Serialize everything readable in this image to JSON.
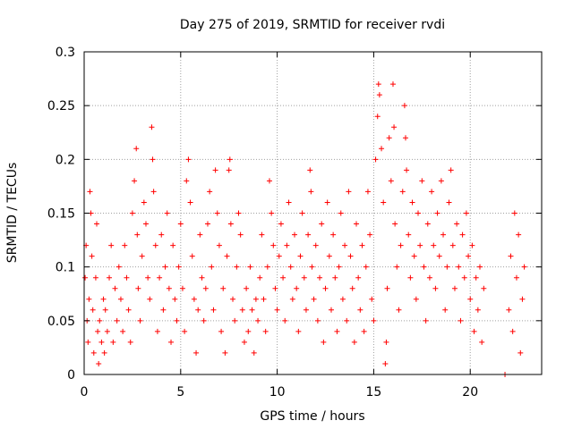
{
  "chart_data": {
    "type": "scatter",
    "title": "Day 275 of 2019, SRMTID for receiver rvdi",
    "xlabel": "GPS time / hours",
    "ylabel": "SRMTID / TECUs",
    "xlim": [
      0,
      23.7
    ],
    "ylim": [
      0,
      0.3
    ],
    "x_ticks": [
      "0",
      "5",
      "10",
      "15",
      "20"
    ],
    "x_tick_values": [
      0,
      5,
      10,
      15,
      20
    ],
    "y_ticks": [
      "0",
      "0.05",
      "0.1",
      "0.15",
      "0.2",
      "0.25",
      "0.3"
    ],
    "y_tick_values": [
      0,
      0.05,
      0.1,
      0.15,
      0.2,
      0.25,
      0.3
    ],
    "grid": true,
    "marker": "+",
    "color": "#ff0000",
    "series": [
      {
        "points": [
          [
            0.05,
            0.09
          ],
          [
            0.1,
            0.12
          ],
          [
            0.15,
            0.05
          ],
          [
            0.2,
            0.03
          ],
          [
            0.25,
            0.07
          ],
          [
            0.3,
            0.17
          ],
          [
            0.35,
            0.15
          ],
          [
            0.4,
            0.11
          ],
          [
            0.45,
            0.06
          ],
          [
            0.5,
            0.02
          ],
          [
            0.6,
            0.09
          ],
          [
            0.65,
            0.14
          ],
          [
            0.7,
            0.04
          ],
          [
            0.75,
            0.01
          ],
          [
            0.8,
            0.05
          ],
          [
            0.9,
            0.03
          ],
          [
            1.0,
            0.07
          ],
          [
            1.05,
            0.02
          ],
          [
            1.1,
            0.06
          ],
          [
            1.2,
            0.04
          ],
          [
            1.3,
            0.09
          ],
          [
            1.4,
            0.12
          ],
          [
            1.5,
            0.03
          ],
          [
            1.6,
            0.08
          ],
          [
            1.7,
            0.05
          ],
          [
            1.8,
            0.1
          ],
          [
            1.9,
            0.07
          ],
          [
            2.0,
            0.04
          ],
          [
            2.1,
            0.12
          ],
          [
            2.2,
            0.09
          ],
          [
            2.3,
            0.06
          ],
          [
            2.4,
            0.03
          ],
          [
            2.5,
            0.15
          ],
          [
            2.6,
            0.18
          ],
          [
            2.7,
            0.21
          ],
          [
            2.75,
            0.13
          ],
          [
            2.8,
            0.08
          ],
          [
            2.9,
            0.05
          ],
          [
            3.0,
            0.11
          ],
          [
            3.1,
            0.16
          ],
          [
            3.2,
            0.14
          ],
          [
            3.3,
            0.09
          ],
          [
            3.4,
            0.07
          ],
          [
            3.5,
            0.23
          ],
          [
            3.55,
            0.2
          ],
          [
            3.6,
            0.17
          ],
          [
            3.7,
            0.12
          ],
          [
            3.8,
            0.04
          ],
          [
            3.9,
            0.09
          ],
          [
            4.0,
            0.13
          ],
          [
            4.1,
            0.06
          ],
          [
            4.2,
            0.1
          ],
          [
            4.3,
            0.15
          ],
          [
            4.4,
            0.08
          ],
          [
            4.5,
            0.03
          ],
          [
            4.6,
            0.12
          ],
          [
            4.7,
            0.07
          ],
          [
            4.8,
            0.05
          ],
          [
            4.9,
            0.1
          ],
          [
            5.0,
            0.14
          ],
          [
            5.1,
            0.08
          ],
          [
            5.2,
            0.04
          ],
          [
            5.3,
            0.18
          ],
          [
            5.4,
            0.2
          ],
          [
            5.5,
            0.16
          ],
          [
            5.6,
            0.11
          ],
          [
            5.7,
            0.07
          ],
          [
            5.8,
            0.02
          ],
          [
            5.9,
            0.06
          ],
          [
            6.0,
            0.13
          ],
          [
            6.1,
            0.09
          ],
          [
            6.2,
            0.05
          ],
          [
            6.3,
            0.08
          ],
          [
            6.4,
            0.14
          ],
          [
            6.5,
            0.17
          ],
          [
            6.6,
            0.1
          ],
          [
            6.7,
            0.06
          ],
          [
            6.8,
            0.19
          ],
          [
            6.9,
            0.15
          ],
          [
            7.0,
            0.12
          ],
          [
            7.1,
            0.04
          ],
          [
            7.2,
            0.08
          ],
          [
            7.3,
            0.02
          ],
          [
            7.4,
            0.11
          ],
          [
            7.5,
            0.19
          ],
          [
            7.55,
            0.2
          ],
          [
            7.6,
            0.14
          ],
          [
            7.7,
            0.07
          ],
          [
            7.8,
            0.05
          ],
          [
            7.9,
            0.1
          ],
          [
            8.0,
            0.15
          ],
          [
            8.1,
            0.13
          ],
          [
            8.2,
            0.06
          ],
          [
            8.3,
            0.03
          ],
          [
            8.4,
            0.08
          ],
          [
            8.5,
            0.04
          ],
          [
            8.6,
            0.1
          ],
          [
            8.7,
            0.06
          ],
          [
            8.8,
            0.02
          ],
          [
            8.9,
            0.07
          ],
          [
            9.0,
            0.05
          ],
          [
            9.1,
            0.09
          ],
          [
            9.2,
            0.13
          ],
          [
            9.3,
            0.07
          ],
          [
            9.4,
            0.04
          ],
          [
            9.5,
            0.1
          ],
          [
            9.6,
            0.18
          ],
          [
            9.7,
            0.15
          ],
          [
            9.8,
            0.12
          ],
          [
            9.9,
            0.08
          ],
          [
            10.0,
            0.06
          ],
          [
            10.1,
            0.11
          ],
          [
            10.2,
            0.14
          ],
          [
            10.3,
            0.09
          ],
          [
            10.4,
            0.05
          ],
          [
            10.5,
            0.12
          ],
          [
            10.6,
            0.16
          ],
          [
            10.7,
            0.1
          ],
          [
            10.8,
            0.07
          ],
          [
            10.9,
            0.13
          ],
          [
            11.0,
            0.08
          ],
          [
            11.1,
            0.04
          ],
          [
            11.2,
            0.11
          ],
          [
            11.3,
            0.15
          ],
          [
            11.4,
            0.09
          ],
          [
            11.5,
            0.06
          ],
          [
            11.6,
            0.13
          ],
          [
            11.7,
            0.19
          ],
          [
            11.75,
            0.17
          ],
          [
            11.8,
            0.1
          ],
          [
            11.9,
            0.07
          ],
          [
            12.0,
            0.12
          ],
          [
            12.1,
            0.05
          ],
          [
            12.2,
            0.09
          ],
          [
            12.3,
            0.14
          ],
          [
            12.4,
            0.03
          ],
          [
            12.5,
            0.08
          ],
          [
            12.6,
            0.16
          ],
          [
            12.7,
            0.11
          ],
          [
            12.8,
            0.06
          ],
          [
            12.9,
            0.13
          ],
          [
            13.0,
            0.09
          ],
          [
            13.1,
            0.04
          ],
          [
            13.2,
            0.1
          ],
          [
            13.3,
            0.15
          ],
          [
            13.4,
            0.07
          ],
          [
            13.5,
            0.12
          ],
          [
            13.6,
            0.05
          ],
          [
            13.7,
            0.17
          ],
          [
            13.8,
            0.11
          ],
          [
            13.9,
            0.08
          ],
          [
            14.0,
            0.03
          ],
          [
            14.1,
            0.14
          ],
          [
            14.2,
            0.09
          ],
          [
            14.3,
            0.06
          ],
          [
            14.4,
            0.12
          ],
          [
            14.5,
            0.04
          ],
          [
            14.6,
            0.1
          ],
          [
            14.7,
            0.17
          ],
          [
            14.8,
            0.13
          ],
          [
            14.9,
            0.07
          ],
          [
            15.0,
            0.05
          ],
          [
            15.1,
            0.2
          ],
          [
            15.2,
            0.24
          ],
          [
            15.25,
            0.27
          ],
          [
            15.3,
            0.26
          ],
          [
            15.4,
            0.21
          ],
          [
            15.5,
            0.16
          ],
          [
            15.6,
            0.01
          ],
          [
            15.65,
            0.03
          ],
          [
            15.7,
            0.08
          ],
          [
            15.8,
            0.22
          ],
          [
            15.9,
            0.18
          ],
          [
            16.0,
            0.27
          ],
          [
            16.05,
            0.23
          ],
          [
            16.1,
            0.14
          ],
          [
            16.2,
            0.1
          ],
          [
            16.3,
            0.06
          ],
          [
            16.4,
            0.12
          ],
          [
            16.5,
            0.17
          ],
          [
            16.6,
            0.25
          ],
          [
            16.65,
            0.22
          ],
          [
            16.7,
            0.19
          ],
          [
            16.8,
            0.13
          ],
          [
            16.9,
            0.09
          ],
          [
            17.0,
            0.16
          ],
          [
            17.1,
            0.11
          ],
          [
            17.2,
            0.07
          ],
          [
            17.3,
            0.15
          ],
          [
            17.4,
            0.12
          ],
          [
            17.5,
            0.18
          ],
          [
            17.6,
            0.1
          ],
          [
            17.7,
            0.05
          ],
          [
            17.8,
            0.14
          ],
          [
            17.9,
            0.09
          ],
          [
            18.0,
            0.17
          ],
          [
            18.1,
            0.12
          ],
          [
            18.2,
            0.08
          ],
          [
            18.3,
            0.15
          ],
          [
            18.4,
            0.11
          ],
          [
            18.5,
            0.18
          ],
          [
            18.6,
            0.13
          ],
          [
            18.7,
            0.06
          ],
          [
            18.8,
            0.1
          ],
          [
            18.9,
            0.16
          ],
          [
            19.0,
            0.19
          ],
          [
            19.1,
            0.12
          ],
          [
            19.2,
            0.08
          ],
          [
            19.3,
            0.14
          ],
          [
            19.4,
            0.1
          ],
          [
            19.5,
            0.05
          ],
          [
            19.6,
            0.13
          ],
          [
            19.7,
            0.09
          ],
          [
            19.8,
            0.15
          ],
          [
            19.9,
            0.11
          ],
          [
            20.0,
            0.07
          ],
          [
            20.1,
            0.12
          ],
          [
            20.2,
            0.04
          ],
          [
            20.3,
            0.09
          ],
          [
            20.4,
            0.06
          ],
          [
            20.5,
            0.1
          ],
          [
            20.6,
            0.03
          ],
          [
            20.7,
            0.08
          ],
          [
            21.8,
            0.0
          ],
          [
            22.0,
            0.06
          ],
          [
            22.1,
            0.11
          ],
          [
            22.2,
            0.04
          ],
          [
            22.3,
            0.15
          ],
          [
            22.4,
            0.09
          ],
          [
            22.5,
            0.13
          ],
          [
            22.6,
            0.02
          ],
          [
            22.7,
            0.07
          ],
          [
            22.8,
            0.1
          ]
        ]
      }
    ]
  }
}
